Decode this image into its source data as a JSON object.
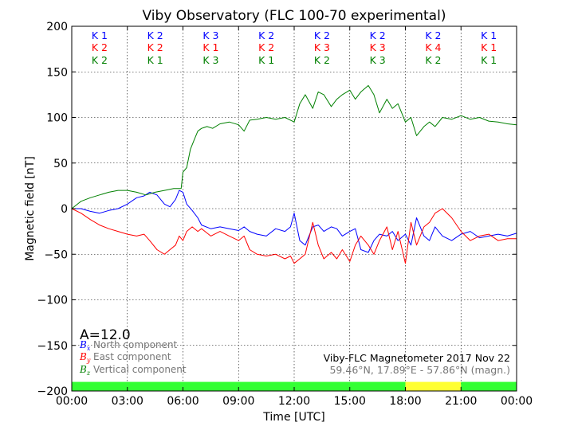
{
  "chart_data": {
    "type": "line",
    "title": "Viby Observatory (FLC 100-70 experimental)",
    "xlabel": "Time [UTC]",
    "ylabel": "Magnetic field [nT]",
    "xlim": [
      0,
      24
    ],
    "ylim": [
      -200,
      200
    ],
    "x_ticks": [
      0,
      3,
      6,
      9,
      12,
      15,
      18,
      21,
      24
    ],
    "x_tick_labels": [
      "00:00",
      "03:00",
      "06:00",
      "09:00",
      "12:00",
      "15:00",
      "18:00",
      "21:00",
      "00:00"
    ],
    "y_ticks": [
      -200,
      -150,
      -100,
      -50,
      0,
      50,
      100,
      150,
      200
    ],
    "y_tick_labels": [
      "−200",
      "−150",
      "−100",
      "−50",
      "0",
      "50",
      "100",
      "150",
      "200"
    ],
    "grid": true,
    "legend_position": "bottom-left",
    "series": [
      {
        "name": "North component",
        "symbol": "B",
        "subscript": "x",
        "color": "#0000ff",
        "x": [
          0,
          0.5,
          1,
          1.5,
          2,
          2.5,
          3,
          3.5,
          3.9,
          4.2,
          4.6,
          5,
          5.3,
          5.6,
          5.8,
          6.0,
          6.2,
          6.5,
          6.8,
          7,
          7.5,
          8,
          8.5,
          9,
          9.3,
          9.6,
          10,
          10.5,
          11,
          11.5,
          11.8,
          12,
          12.3,
          12.6,
          13,
          13.3,
          13.6,
          14,
          14.3,
          14.6,
          15,
          15.3,
          15.6,
          16,
          16.3,
          16.6,
          17,
          17.3,
          17.6,
          18,
          18.3,
          18.6,
          19,
          19.3,
          19.6,
          20,
          20.5,
          21,
          21.5,
          22,
          22.5,
          23,
          23.5,
          24
        ],
        "y": [
          0,
          0,
          -3,
          -5,
          -2,
          0,
          5,
          12,
          14,
          18,
          15,
          5,
          2,
          10,
          20,
          18,
          5,
          -2,
          -10,
          -18,
          -22,
          -20,
          -22,
          -24,
          -20,
          -25,
          -28,
          -30,
          -22,
          -25,
          -20,
          -5,
          -35,
          -40,
          -20,
          -18,
          -25,
          -20,
          -22,
          -30,
          -25,
          -22,
          -45,
          -48,
          -35,
          -28,
          -30,
          -25,
          -35,
          -28,
          -40,
          -10,
          -30,
          -35,
          -20,
          -30,
          -35,
          -28,
          -25,
          -32,
          -30,
          -28,
          -30,
          -27
        ]
      },
      {
        "name": "East component",
        "symbol": "B",
        "subscript": "y",
        "color": "#ff0000",
        "x": [
          0,
          0.5,
          1,
          1.5,
          2,
          2.5,
          3,
          3.5,
          3.9,
          4.2,
          4.6,
          5,
          5.3,
          5.6,
          5.8,
          6.0,
          6.2,
          6.5,
          6.8,
          7,
          7.5,
          8,
          8.5,
          9,
          9.3,
          9.6,
          10,
          10.5,
          11,
          11.5,
          11.8,
          12,
          12.3,
          12.6,
          13,
          13.3,
          13.6,
          14,
          14.3,
          14.6,
          15,
          15.3,
          15.6,
          16,
          16.3,
          16.6,
          17,
          17.3,
          17.6,
          18,
          18.3,
          18.6,
          19,
          19.3,
          19.6,
          20,
          20.5,
          21,
          21.5,
          22,
          22.5,
          23,
          23.5,
          24
        ],
        "y": [
          0,
          -5,
          -12,
          -18,
          -22,
          -25,
          -28,
          -30,
          -28,
          -35,
          -45,
          -50,
          -45,
          -40,
          -30,
          -35,
          -25,
          -20,
          -25,
          -22,
          -30,
          -25,
          -30,
          -35,
          -30,
          -45,
          -50,
          -52,
          -50,
          -55,
          -52,
          -60,
          -55,
          -50,
          -15,
          -40,
          -55,
          -48,
          -55,
          -45,
          -58,
          -40,
          -30,
          -40,
          -50,
          -35,
          -20,
          -45,
          -25,
          -60,
          -15,
          -40,
          -20,
          -15,
          -5,
          0,
          -10,
          -25,
          -35,
          -30,
          -28,
          -35,
          -33,
          -33
        ]
      },
      {
        "name": "Vertical component",
        "symbol": "B",
        "subscript": "z",
        "color": "#008000",
        "x": [
          0,
          0.5,
          1,
          1.5,
          2,
          2.5,
          3,
          3.5,
          4,
          4.5,
          5,
          5.5,
          5.9,
          6.0,
          6.2,
          6.4,
          6.6,
          6.8,
          7,
          7.3,
          7.6,
          8,
          8.5,
          9,
          9.3,
          9.6,
          10,
          10.5,
          11,
          11.5,
          12,
          12.3,
          12.6,
          13,
          13.3,
          13.6,
          14,
          14.3,
          14.6,
          15,
          15.3,
          15.6,
          16,
          16.3,
          16.6,
          17,
          17.3,
          17.6,
          18,
          18.3,
          18.6,
          19,
          19.3,
          19.6,
          20,
          20.5,
          21,
          21.5,
          22,
          22.5,
          23,
          23.5,
          24
        ],
        "y": [
          0,
          8,
          12,
          15,
          18,
          20,
          20,
          18,
          15,
          18,
          20,
          22,
          22,
          40,
          45,
          65,
          75,
          85,
          88,
          90,
          88,
          93,
          95,
          92,
          85,
          97,
          98,
          100,
          98,
          100,
          95,
          115,
          125,
          110,
          128,
          125,
          112,
          120,
          125,
          130,
          120,
          128,
          135,
          125,
          105,
          120,
          110,
          115,
          95,
          100,
          80,
          90,
          95,
          90,
          100,
          98,
          102,
          98,
          100,
          96,
          95,
          93,
          92
        ]
      }
    ],
    "k_index": {
      "intervals": [
        {
          "x": 1.5,
          "k_x": "K 1",
          "k_y": "K 2",
          "k_z": "K 2"
        },
        {
          "x": 4.5,
          "k_x": "K 2",
          "k_y": "K 2",
          "k_z": "K 1"
        },
        {
          "x": 7.5,
          "k_x": "K 3",
          "k_y": "K 1",
          "k_z": "K 3"
        },
        {
          "x": 10.5,
          "k_x": "K 2",
          "k_y": "K 2",
          "k_z": "K 1"
        },
        {
          "x": 13.5,
          "k_x": "K 2",
          "k_y": "K 3",
          "k_z": "K 2"
        },
        {
          "x": 16.5,
          "k_x": "K 2",
          "k_y": "K 3",
          "k_z": "K 3"
        },
        {
          "x": 19.5,
          "k_x": "K 2",
          "k_y": "K 4",
          "k_z": "K 2"
        },
        {
          "x": 22.5,
          "k_x": "K 1",
          "k_y": "K 1",
          "k_z": "K 1"
        }
      ]
    },
    "activity_bar": [
      {
        "from": 0,
        "to": 18,
        "color": "#33ff33"
      },
      {
        "from": 18,
        "to": 21,
        "color": "#ffff33"
      },
      {
        "from": 21,
        "to": 24,
        "color": "#33ff33"
      }
    ],
    "a_index": "A=12.0",
    "annotations": {
      "line1": "Viby-FLC Magnetometer 2017 Nov 22",
      "line2": "59.46°N, 17.89°E - 57.86°N (magn.)"
    }
  }
}
